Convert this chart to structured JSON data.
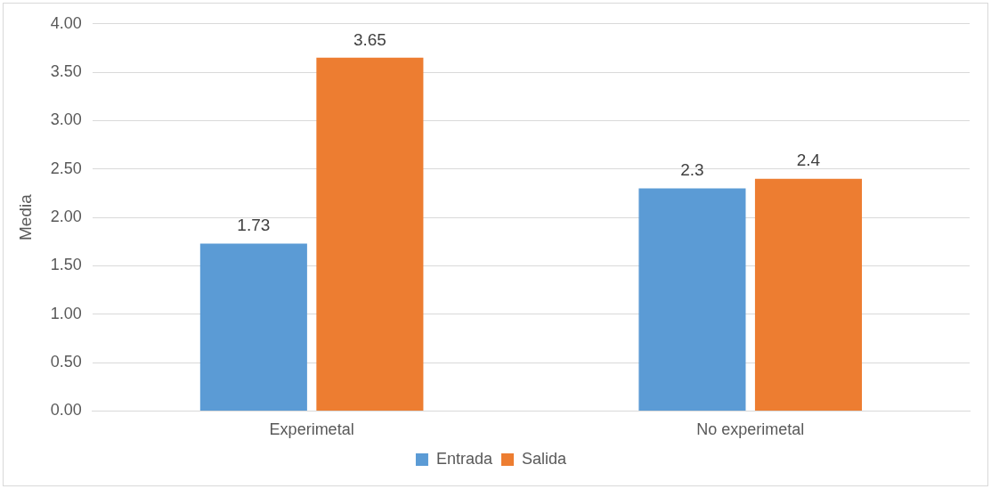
{
  "chart_data": {
    "type": "bar",
    "categories": [
      "Experimetal",
      "No experimetal"
    ],
    "series": [
      {
        "name": "Entrada",
        "color": "#5b9bd5",
        "values": [
          1.73,
          2.3
        ]
      },
      {
        "name": "Salida",
        "color": "#ed7d31",
        "values": [
          3.65,
          2.4
        ]
      }
    ],
    "ylabel": "Media",
    "ylim": [
      0,
      4
    ],
    "yticks": [
      {
        "value": 0,
        "label": "0.00"
      },
      {
        "value": 0.5,
        "label": "0.50"
      },
      {
        "value": 1,
        "label": "1.00"
      },
      {
        "value": 1.5,
        "label": "1.50"
      },
      {
        "value": 2,
        "label": "2.00"
      },
      {
        "value": 2.5,
        "label": "2.50"
      },
      {
        "value": 3,
        "label": "3.00"
      },
      {
        "value": 3.5,
        "label": "3.50"
      },
      {
        "value": 4,
        "label": "4.00"
      }
    ],
    "grid": "y",
    "legend": "bottom",
    "data_labels": true
  }
}
